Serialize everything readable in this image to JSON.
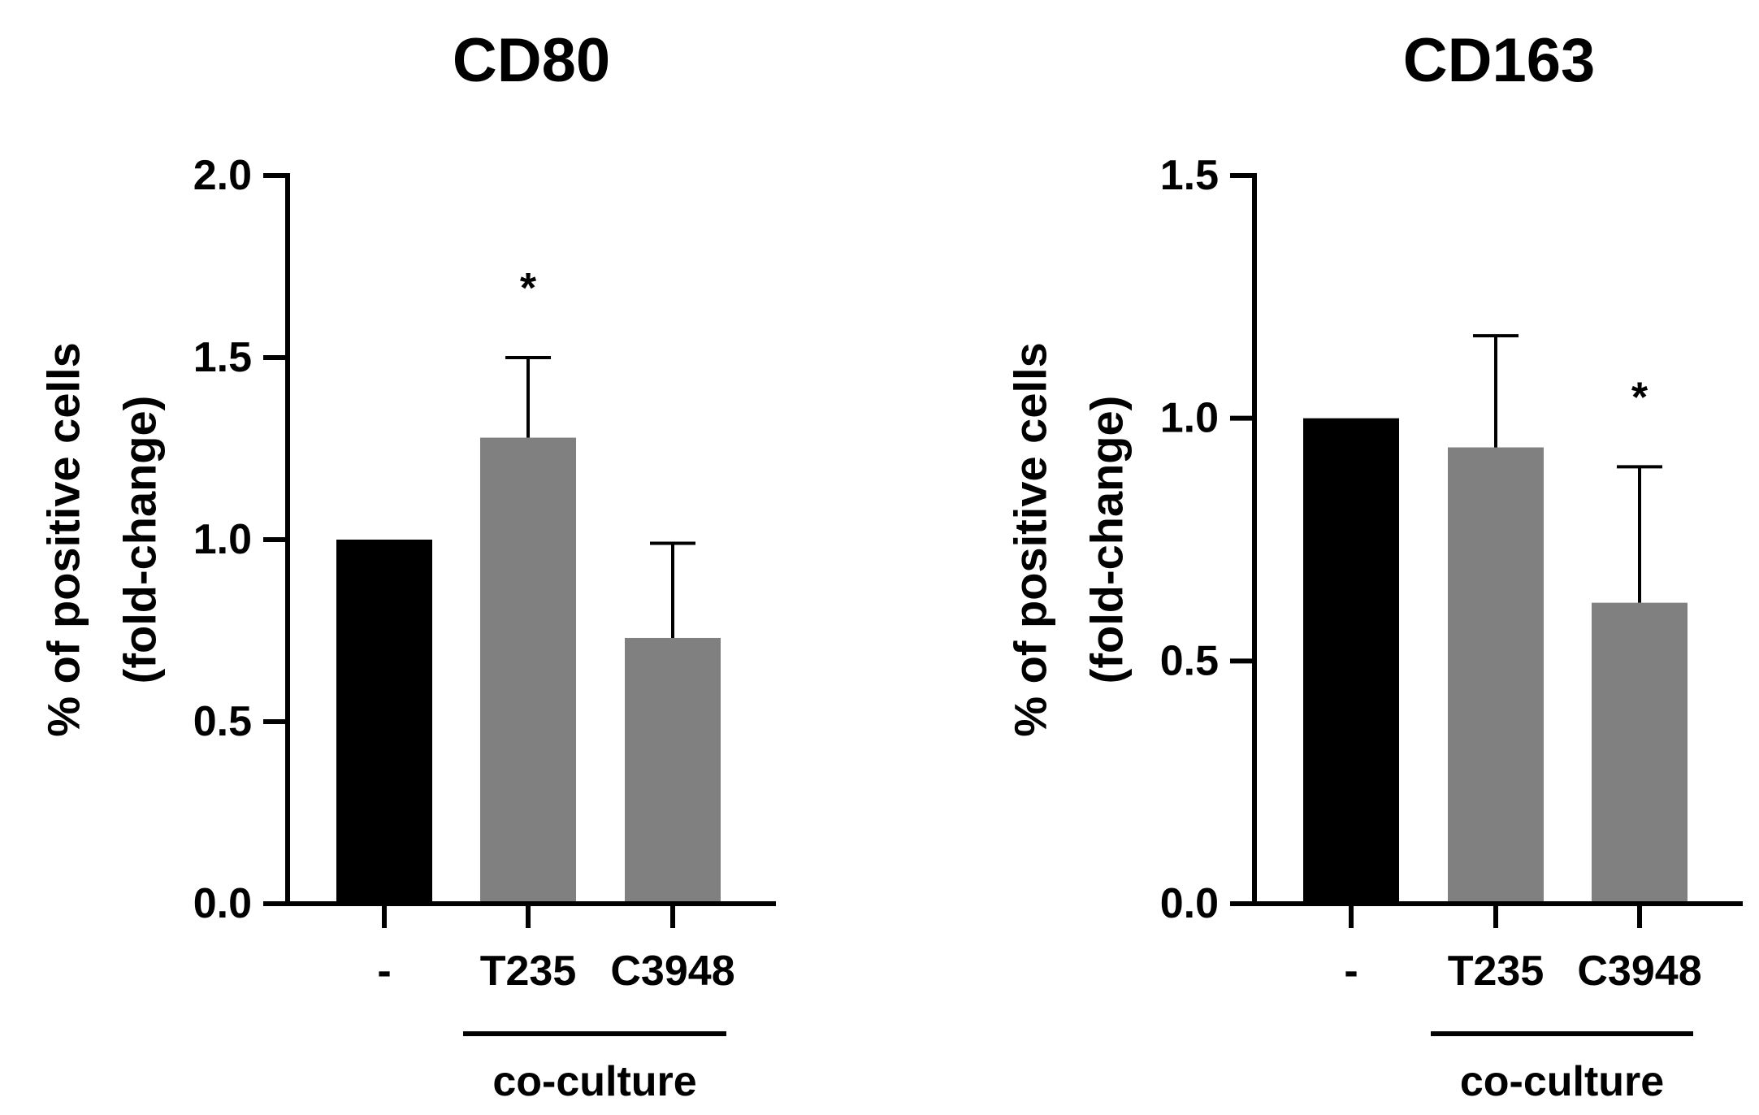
{
  "chart_data": [
    {
      "type": "bar",
      "title": "CD80",
      "ylabel_lines": [
        "% of positive cells",
        "(fold-change)"
      ],
      "categories": [
        "-",
        "T235",
        "C3948"
      ],
      "values": [
        1.0,
        1.28,
        0.73
      ],
      "errors": [
        0,
        0.22,
        0.26
      ],
      "bar_colors": [
        "#000000",
        "#808080",
        "#808080"
      ],
      "significance": [
        "",
        "*",
        ""
      ],
      "ylim": [
        0,
        2.0
      ],
      "yticks": [
        0.0,
        0.5,
        1.0,
        1.5,
        2.0
      ],
      "ytick_labels": [
        "0.0",
        "0.5",
        "1.0",
        "1.5",
        "2.0"
      ],
      "group_label": "co-culture",
      "group_span": [
        1,
        2
      ]
    },
    {
      "type": "bar",
      "title": "CD163",
      "ylabel_lines": [
        "% of positive cells",
        "(fold-change)"
      ],
      "categories": [
        "-",
        "T235",
        "C3948"
      ],
      "values": [
        1.0,
        0.94,
        0.62
      ],
      "errors": [
        0,
        0.23,
        0.28
      ],
      "bar_colors": [
        "#000000",
        "#808080",
        "#808080"
      ],
      "significance": [
        "",
        "",
        "*"
      ],
      "ylim": [
        0,
        1.5
      ],
      "yticks": [
        0.0,
        0.5,
        1.0,
        1.5
      ],
      "ytick_labels": [
        "0.0",
        "0.5",
        "1.0",
        "1.5"
      ],
      "group_label": "co-culture",
      "group_span": [
        1,
        2
      ]
    }
  ]
}
